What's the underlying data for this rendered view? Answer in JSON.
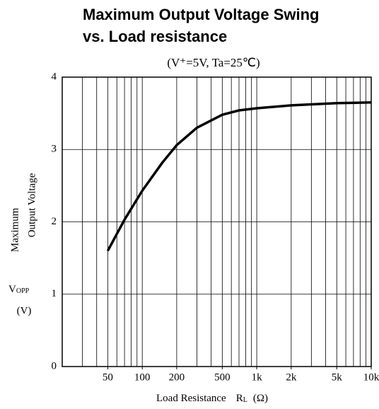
{
  "chart_data": {
    "type": "line",
    "title": [
      "Maximum Output Voltage Swing",
      "vs. Load resistance"
    ],
    "subtitle": "(V⁺=5V, Ta=25℃)",
    "ylabel": [
      "Maximum",
      "Output Voltage"
    ],
    "ylabel_symbol": {
      "main": "V",
      "sub": "OPP"
    },
    "ylabel_unit": "(V)",
    "xlabel": {
      "text": "Load Resistance",
      "main": "R",
      "sub": "L",
      "unit": "(Ω)"
    },
    "xscale": "log",
    "xlim": [
      20,
      10000
    ],
    "ylim": [
      0,
      4
    ],
    "xticks": [
      50,
      100,
      200,
      500,
      {
        "value": 1000,
        "label": "1k"
      },
      {
        "value": 2000,
        "label": "2k"
      },
      {
        "value": 5000,
        "label": "5k"
      },
      {
        "value": 10000,
        "label": "10k"
      }
    ],
    "x_minor_grid": [
      20,
      30,
      40,
      50,
      60,
      70,
      80,
      90,
      100,
      200,
      300,
      400,
      500,
      600,
      700,
      800,
      900,
      1000,
      2000,
      3000,
      4000,
      5000,
      6000,
      7000,
      8000,
      9000,
      10000
    ],
    "yticks": [
      0,
      1,
      2,
      3,
      4
    ],
    "grid": true,
    "series": [
      {
        "color": "#000000",
        "x": [
          50,
          70,
          100,
          150,
          200,
          300,
          500,
          700,
          1000,
          2000,
          5000,
          10000
        ],
        "values": [
          1.6,
          2.03,
          2.43,
          2.82,
          3.06,
          3.3,
          3.48,
          3.54,
          3.57,
          3.61,
          3.64,
          3.65
        ]
      }
    ]
  }
}
